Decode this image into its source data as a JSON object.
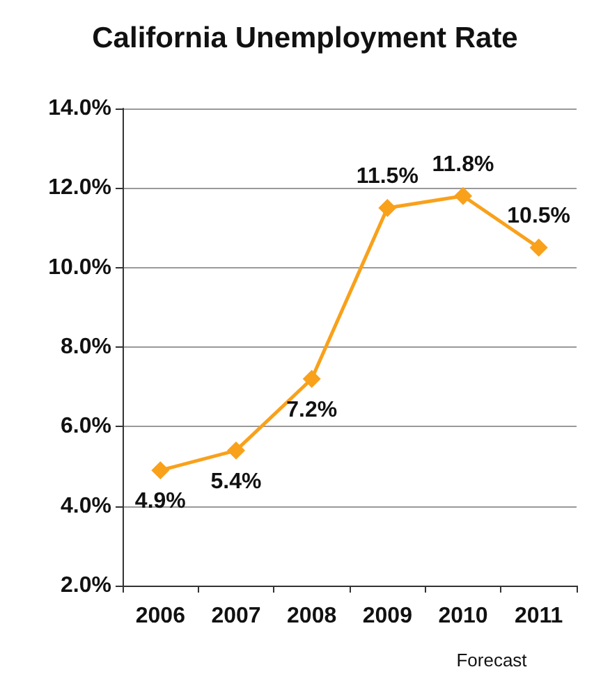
{
  "chart_data": {
    "type": "line",
    "title": "California Unemployment Rate",
    "categories": [
      "2006",
      "2007",
      "2008",
      "2009",
      "2010",
      "2011"
    ],
    "series": [
      {
        "color": "#f9a11b",
        "values": [
          4.9,
          5.4,
          7.2,
          11.5,
          11.8,
          10.5
        ],
        "value_labels": [
          "4.9%",
          "5.4%",
          "7.2%",
          "11.5%",
          "11.8%",
          "10.5%"
        ]
      }
    ],
    "ylim": [
      2,
      14
    ],
    "yticks": [
      {
        "value": 2,
        "label": "2.0%"
      },
      {
        "value": 4,
        "label": "4.0%"
      },
      {
        "value": 6,
        "label": "6.0%"
      },
      {
        "value": 8,
        "label": "8.0%"
      },
      {
        "value": 10,
        "label": "10.0%"
      },
      {
        "value": 12,
        "label": "12.0%"
      },
      {
        "value": 14,
        "label": "14.0%"
      }
    ],
    "grid": "y",
    "marker": "diamond",
    "line_style": "solid",
    "annotations": [
      "Forecast"
    ]
  }
}
